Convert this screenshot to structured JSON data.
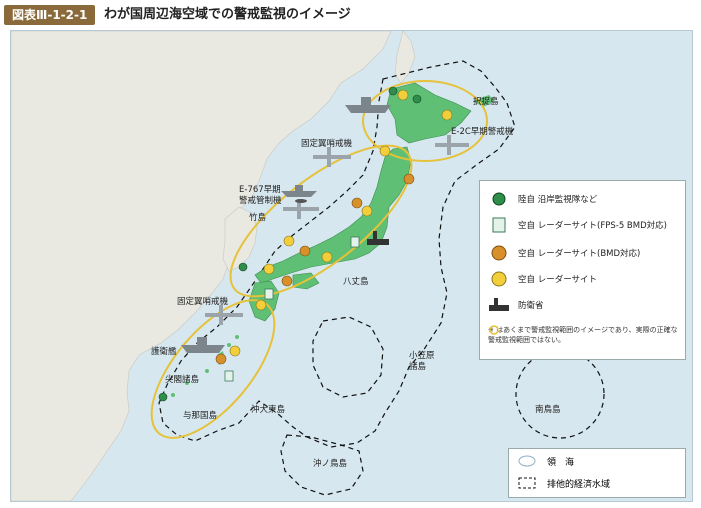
{
  "header": {
    "figure_number": "図表Ⅲ-1-2-1",
    "title": "わが国周辺海空域での警戒監視のイメージ"
  },
  "map_labels": {
    "etorofu": "択捉島",
    "e2c": "E-2C早期警戒機",
    "fixed_wing_north": "固定翼哨戒機",
    "e767": "E-767早期\n警戒管制機",
    "takeshima": "竹島",
    "hachijo": "八丈島",
    "fixed_wing_south": "固定翼哨戒機",
    "escort_ship": "護衛艦",
    "senkaku": "尖閣諸島",
    "yonaguni": "与那国島",
    "okidaito": "沖大東島",
    "ogasawara": "小笠原\n諸島",
    "okinotori": "沖ノ鳥島",
    "minamitori": "南鳥島"
  },
  "legend": {
    "items": [
      {
        "label": "陸自 沿岸監視隊など",
        "icon": "green-station-icon"
      },
      {
        "label": "空自 レーダーサイト(FPS-5 BMD対応)",
        "icon": "fps5-radar-icon"
      },
      {
        "label": "空自 レーダーサイト(BMD対応)",
        "icon": "bmd-radar-dome-icon"
      },
      {
        "label": "空自 レーダーサイト",
        "icon": "radar-dome-icon"
      },
      {
        "label": "防衛省",
        "icon": "mod-building-icon"
      }
    ],
    "note_mark": "※",
    "note": "はあくまで警戒監視範囲のイメージであり、実際の正確な警戒監視範囲ではない。"
  },
  "legend2": {
    "territorial_sea": "領　海",
    "eez": "排他的経済水域"
  },
  "colors": {
    "sea": "#d6e7ef",
    "mainland": "#e8e9e2",
    "japan": "#5fbf74",
    "eez_line": "#111111",
    "range_circle": "#e6c13a",
    "header_label": "#8a6a3a"
  }
}
